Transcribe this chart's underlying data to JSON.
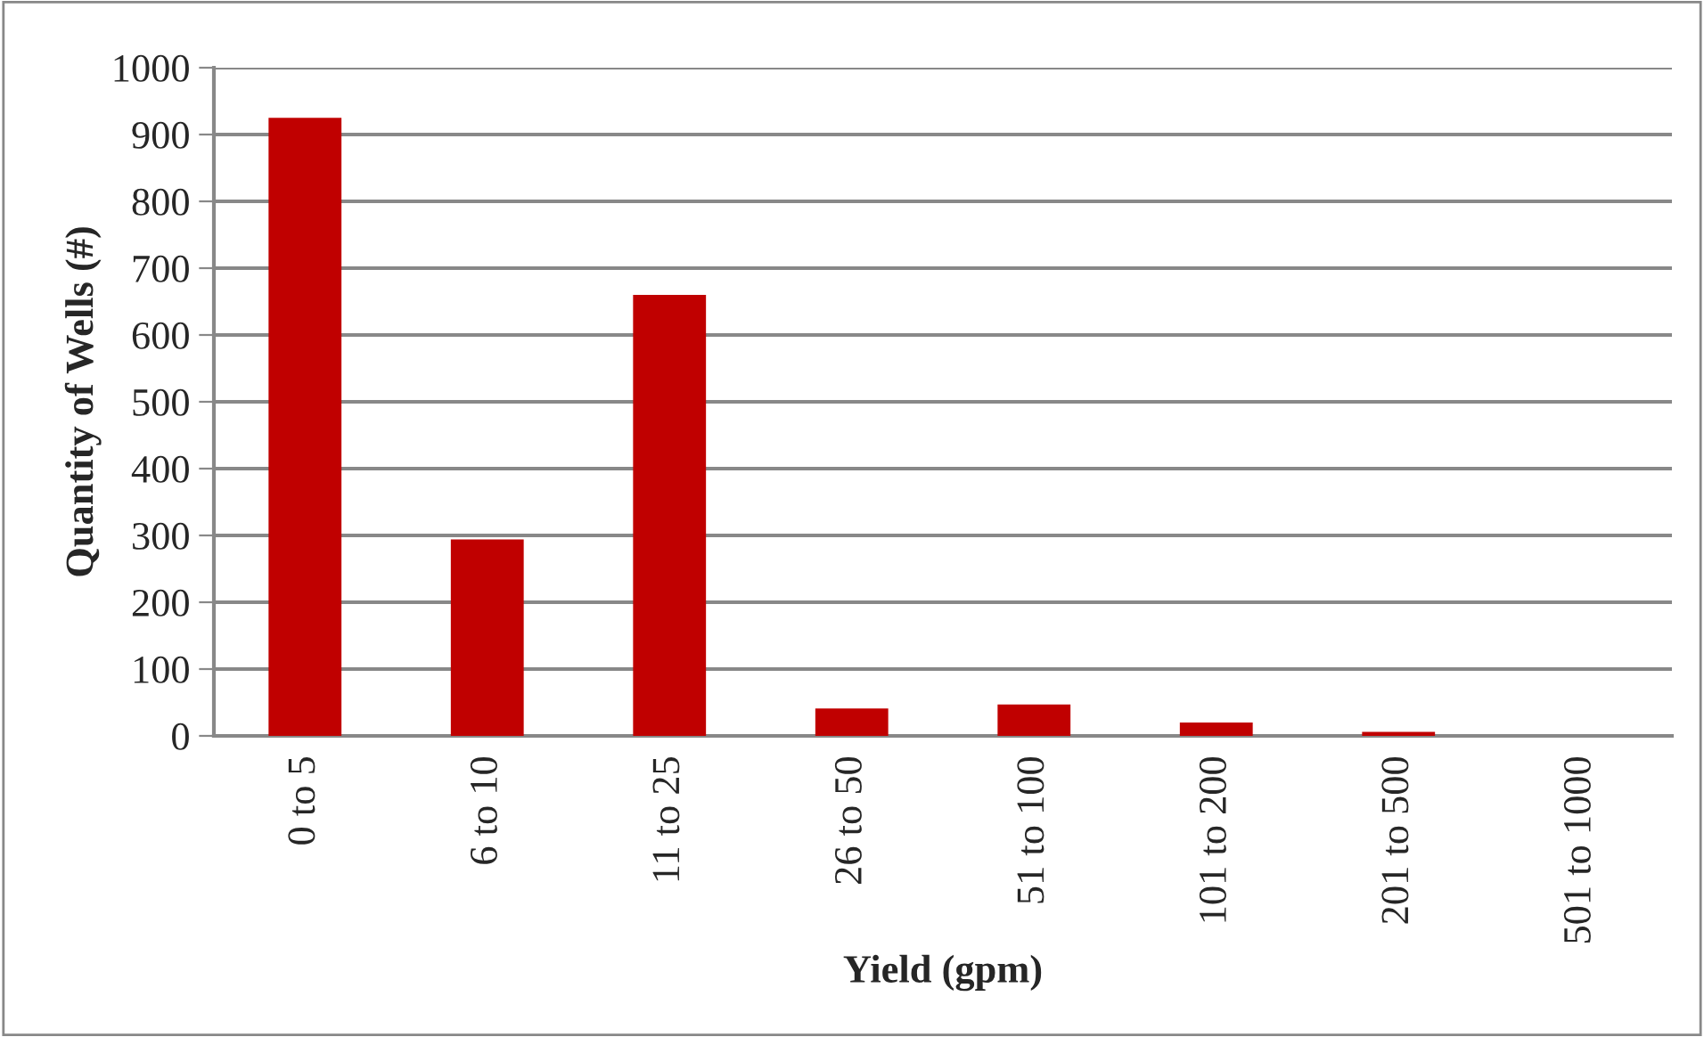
{
  "chart_data": {
    "type": "bar",
    "xlabel": "Yield (gpm)",
    "ylabel": "Quantity of Wells (#)",
    "categories": [
      "0 to 5",
      "6 to 10",
      "11 to 25",
      "26 to 50",
      "51 to 100",
      "101 to 200",
      "201 to 500",
      "501 to 1000"
    ],
    "values": [
      925,
      294,
      660,
      41,
      47,
      20,
      6,
      0
    ],
    "color": "#c00000",
    "ylim": [
      0,
      1000
    ],
    "yticks": [
      0,
      100,
      200,
      300,
      400,
      500,
      600,
      700,
      800,
      900,
      1000
    ],
    "grid": "y",
    "legend": false
  }
}
